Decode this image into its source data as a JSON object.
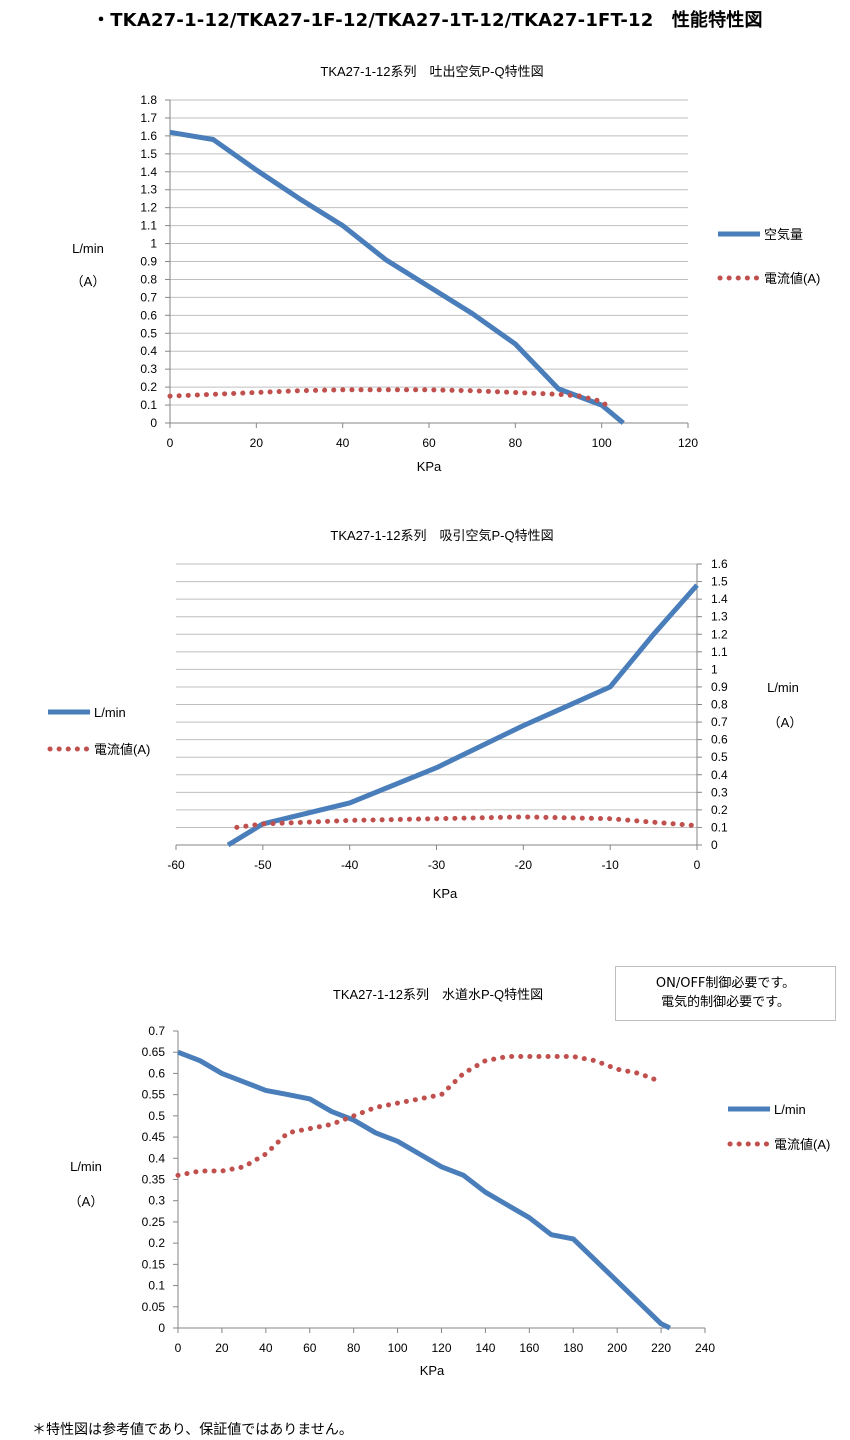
{
  "page_title": "・TKA27-1-12/TKA27-1F-12/TKA27-1T-12/TKA27-1FT-12　性能特性図",
  "note": {
    "line1": "ON/OFF制御必要です。",
    "line2": "電気的制御必要です。"
  },
  "footnote": "＊特性図は参考値であり、保証値ではありません。",
  "colors": {
    "flow": "#4a7ebb",
    "current": "#c0504d",
    "grid": "#bfbfbf"
  },
  "chart_data": [
    {
      "type": "line",
      "title": "TKA27-1-12系列　吐出空気P-Q特性図",
      "xlabel": "KPa",
      "ylabel_lines": [
        "L/min",
        "（A）"
      ],
      "xlim": [
        0,
        120
      ],
      "ylim": [
        0,
        1.8
      ],
      "x_ticks": [
        0,
        20,
        40,
        60,
        80,
        100,
        120
      ],
      "y_ticks": [
        0,
        0.1,
        0.2,
        0.3,
        0.4,
        0.5,
        0.6,
        0.7,
        0.8,
        0.9,
        1,
        1.1,
        1.2,
        1.3,
        1.4,
        1.5,
        1.6,
        1.7,
        1.8
      ],
      "y_axis_side": "left",
      "grid": true,
      "legend_position": "right",
      "series": [
        {
          "name": "空気量",
          "style": "solid",
          "x": [
            0,
            10,
            20,
            30,
            40,
            50,
            60,
            70,
            80,
            90,
            100,
            105
          ],
          "y": [
            1.62,
            1.58,
            1.41,
            1.25,
            1.1,
            0.91,
            0.76,
            0.61,
            0.44,
            0.19,
            0.1,
            0
          ]
        },
        {
          "name": "電流値(A)",
          "style": "dotted",
          "x": [
            0,
            10,
            20,
            30,
            40,
            50,
            60,
            70,
            80,
            90,
            95,
            100,
            102
          ],
          "y": [
            0.15,
            0.16,
            0.17,
            0.18,
            0.185,
            0.185,
            0.185,
            0.18,
            0.17,
            0.16,
            0.15,
            0.12,
            0.08
          ]
        }
      ]
    },
    {
      "type": "line",
      "title": "TKA27-1-12系列　吸引空気P-Q特性図",
      "xlabel": "KPa",
      "ylabel_lines": [
        "L/min",
        "（A）"
      ],
      "xlim": [
        -60,
        0
      ],
      "ylim": [
        0,
        1.6
      ],
      "x_ticks": [
        -60,
        -50,
        -40,
        -30,
        -20,
        -10,
        0
      ],
      "y_ticks": [
        0,
        0.1,
        0.2,
        0.3,
        0.4,
        0.5,
        0.6,
        0.7,
        0.8,
        0.9,
        1,
        1.1,
        1.2,
        1.3,
        1.4,
        1.5,
        1.6
      ],
      "y_axis_side": "right",
      "grid": true,
      "legend_position": "left",
      "series": [
        {
          "name": "L/min",
          "style": "solid",
          "x": [
            -54,
            -50,
            -45,
            -40,
            -35,
            -30,
            -25,
            -20,
            -15,
            -10,
            -5,
            0
          ],
          "y": [
            0,
            0.12,
            0.18,
            0.24,
            0.34,
            0.44,
            0.56,
            0.68,
            0.79,
            0.9,
            1.2,
            1.48
          ]
        },
        {
          "name": "電流値(A)",
          "style": "dotted",
          "x": [
            -53,
            -50,
            -45,
            -40,
            -30,
            -20,
            -10,
            -5,
            0
          ],
          "y": [
            0.1,
            0.12,
            0.13,
            0.14,
            0.15,
            0.16,
            0.15,
            0.13,
            0.11
          ]
        }
      ]
    },
    {
      "type": "line",
      "title": "TKA27-1-12系列　水道水P-Q特性図",
      "xlabel": "KPa",
      "ylabel_lines": [
        "L/min",
        "（A）"
      ],
      "xlim": [
        0,
        240
      ],
      "ylim": [
        0,
        0.7
      ],
      "x_ticks": [
        0,
        20,
        40,
        60,
        80,
        100,
        120,
        140,
        160,
        180,
        200,
        220,
        240
      ],
      "y_ticks": [
        0,
        0.05,
        0.1,
        0.15,
        0.2,
        0.25,
        0.3,
        0.35,
        0.4,
        0.45,
        0.5,
        0.55,
        0.6,
        0.65,
        0.7
      ],
      "y_axis_side": "left",
      "grid": false,
      "legend_position": "right",
      "series": [
        {
          "name": "L/min",
          "style": "solid",
          "x": [
            0,
            10,
            20,
            30,
            40,
            50,
            60,
            70,
            80,
            90,
            100,
            110,
            120,
            130,
            140,
            150,
            160,
            170,
            180,
            190,
            200,
            210,
            220,
            224
          ],
          "y": [
            0.65,
            0.63,
            0.6,
            0.58,
            0.56,
            0.55,
            0.54,
            0.51,
            0.49,
            0.46,
            0.44,
            0.41,
            0.38,
            0.36,
            0.32,
            0.29,
            0.26,
            0.22,
            0.21,
            0.16,
            0.11,
            0.06,
            0.01,
            0
          ]
        },
        {
          "name": "電流値(A)",
          "style": "dotted",
          "x": [
            0,
            10,
            20,
            30,
            40,
            50,
            60,
            70,
            80,
            90,
            100,
            110,
            120,
            130,
            140,
            150,
            160,
            170,
            180,
            190,
            200,
            210,
            220
          ],
          "y": [
            0.36,
            0.37,
            0.37,
            0.38,
            0.41,
            0.46,
            0.47,
            0.48,
            0.5,
            0.52,
            0.53,
            0.54,
            0.55,
            0.6,
            0.63,
            0.64,
            0.64,
            0.64,
            0.64,
            0.63,
            0.61,
            0.6,
            0.58
          ]
        }
      ]
    }
  ]
}
